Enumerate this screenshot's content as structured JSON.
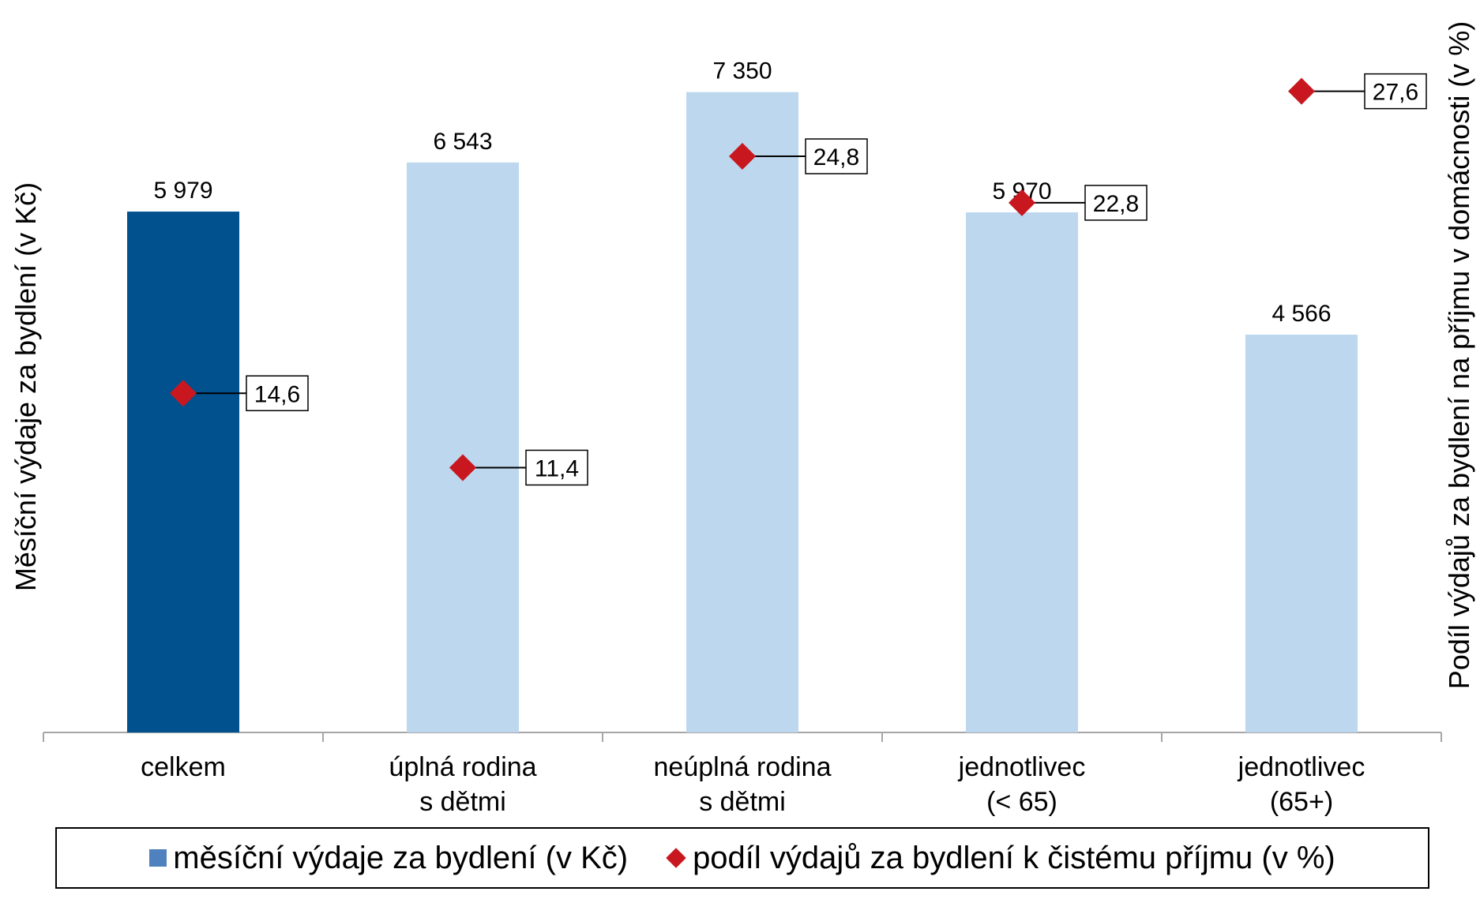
{
  "chart_data": {
    "type": "bar",
    "categories": [
      [
        "celkem"
      ],
      [
        "úplná rodina",
        "s dětmi"
      ],
      [
        "neúplná rodina",
        "s dětmi"
      ],
      [
        "jednotlivec",
        "(< 65)"
      ],
      [
        "jednotlivec",
        "(65+)"
      ]
    ],
    "series": [
      {
        "name": "měsíční výdaje za bydlení (v Kč)",
        "type": "bar",
        "axis": "left",
        "values": [
          5979,
          6543,
          7350,
          5970,
          4566
        ],
        "labels": [
          "5 979",
          "6 543",
          "7 350",
          "5 970",
          "4 566"
        ],
        "colors": [
          "#00518e",
          "#bdd7ee",
          "#bdd7ee",
          "#bdd7ee",
          "#bdd7ee"
        ]
      },
      {
        "name": "podíl výdajů za bydlení k čistému příjmu (v %)",
        "type": "scatter",
        "marker": "diamond",
        "axis": "right",
        "values": [
          14.6,
          11.4,
          24.8,
          22.8,
          27.6
        ],
        "labels": [
          "14,6",
          "11,4",
          "24,8",
          "22,8",
          "27,6"
        ],
        "color": "#c8171e"
      }
    ],
    "ylabel": "Měsíční výdaje za bydlení (v Kč)",
    "y2label": "Podíl výdajů za bydlení na příjmu v domácnosti (v %)",
    "ylim": [
      0,
      8000
    ],
    "y2lim": [
      0,
      30
    ],
    "grid": false,
    "legend_position": "bottom"
  },
  "legend": {
    "bar_label": "měsíční výdaje za bydlení (v Kč)",
    "marker_label": "podíl výdajů za bydlení k čistému příjmu (v %)",
    "bar_color": "#4e81bd",
    "marker_color": "#c8171e"
  }
}
